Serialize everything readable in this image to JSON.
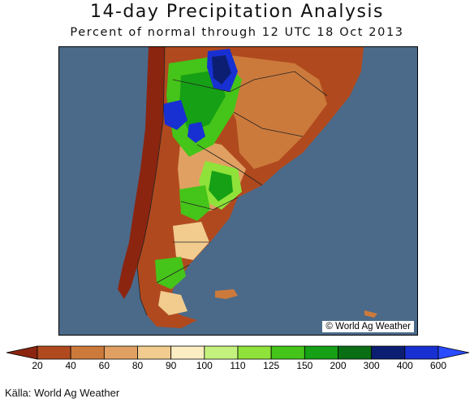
{
  "title": "14-day Precipitation Analysis",
  "subtitle": "Percent of normal through 12 UTC 18 Oct 2013",
  "map_credit": "© World Ag Weather",
  "source": "Källa: World Ag Weather",
  "legend": {
    "labels": [
      "20",
      "40",
      "60",
      "80",
      "90",
      "100",
      "110",
      "125",
      "150",
      "200",
      "300",
      "400",
      "600"
    ],
    "colors": [
      "#8b2510",
      "#b04a1e",
      "#cc7a3c",
      "#e0a062",
      "#f1cc8e",
      "#fbeec2",
      "#c5f27f",
      "#8fe23a",
      "#45c419",
      "#15a015",
      "#0a6e14",
      "#0b1e72",
      "#1830d2",
      "#2a4cff"
    ]
  },
  "map_colors": {
    "ocean": "#4b6a8a",
    "land_dry": "#8b2510",
    "land_mid": "#b04a1e",
    "land_med": "#cc7a3c",
    "land_light": "#e0a062",
    "land_pale": "#f1cc8e",
    "wet_light": "#8fe23a",
    "wet": "#45c419",
    "wet_dark": "#15a015",
    "very_wet": "#0b1e72",
    "extreme": "#1830d2"
  }
}
